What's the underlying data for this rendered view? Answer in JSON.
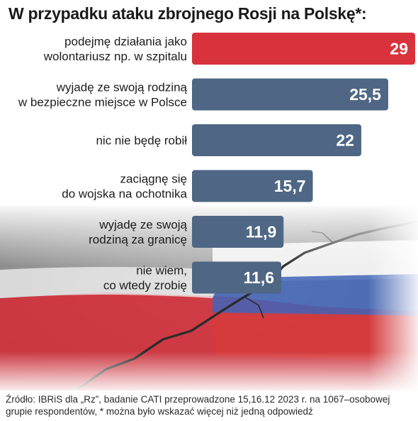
{
  "chart_data": {
    "type": "bar",
    "orientation": "horizontal",
    "title": "W przypadku ataku zbrojnego Rosji na Polskę*:",
    "categories": [
      [
        "podejmę działania jako",
        "wolontariusz np. w szpitalu"
      ],
      [
        "wyjadę ze swoją rodziną",
        "w bezpieczne miejsce w Polsce"
      ],
      [
        "nic nie będę robił"
      ],
      [
        "zaciągnę się",
        "do wojska na ochotnika"
      ],
      [
        "wyjadę ze swoją",
        "rodziną za granicę"
      ],
      [
        "nie wiem,",
        "co wtedy zrobię"
      ]
    ],
    "values": [
      29,
      25.5,
      22,
      15.7,
      11.9,
      11.6
    ],
    "value_labels": [
      "29",
      "25,5",
      "22",
      "15,7",
      "11,9",
      "11,6"
    ],
    "bar_colors": [
      "#d8323c",
      "#4f6784",
      "#4f6784",
      "#4f6784",
      "#4f6784",
      "#4f6784"
    ],
    "grid": false,
    "legend": "none"
  },
  "source": {
    "line1": "Źródło: IBRiS dla „Rz”, badanie CATI przeprowadzone 15,16.12 2023 r. na 1067–osobowej",
    "line2": "grupie respondentów, * można było wskazać więcej niż jedną odpowiedź"
  },
  "colors": {
    "flag_red": "#d32f3a",
    "flag_white": "#ffffff",
    "road": "#8a8a8a",
    "title_text": "#1a1a1a"
  }
}
